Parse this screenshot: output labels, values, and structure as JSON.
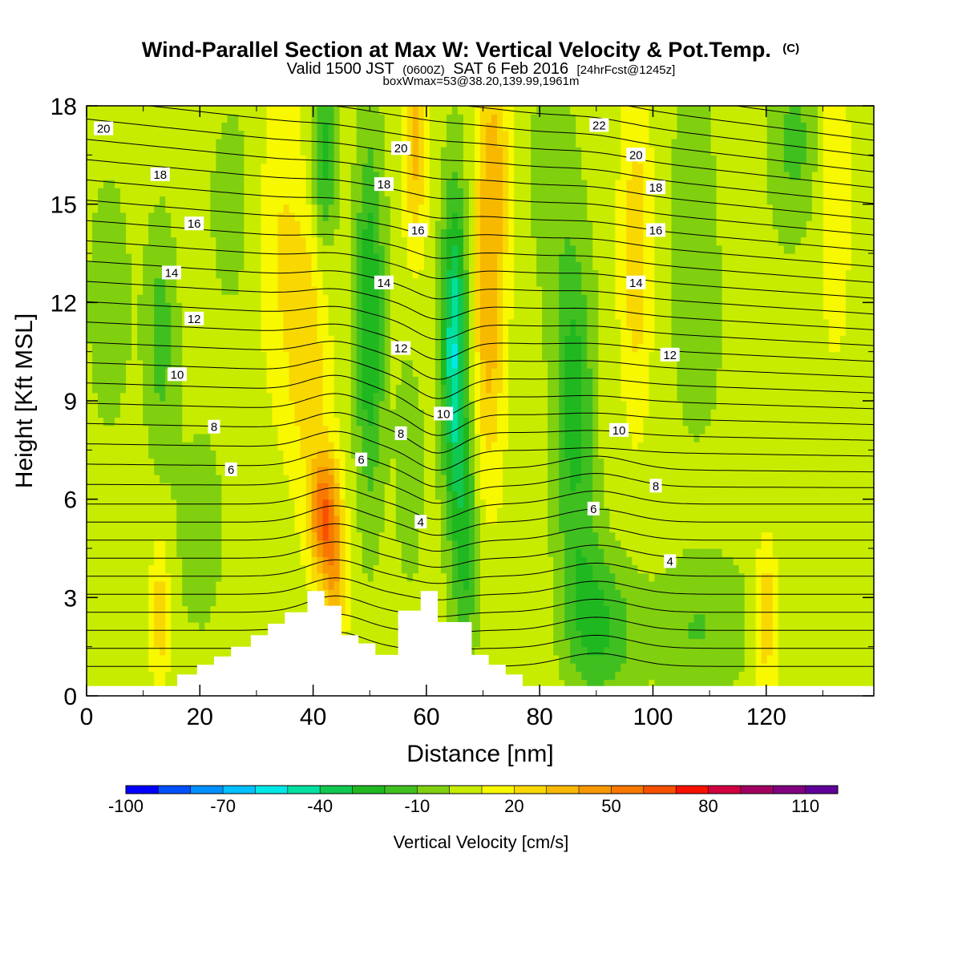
{
  "header": {
    "title": "Wind-Parallel Section at Max W: Vertical Velocity & Pot.Temp.",
    "title_mark": "(C)",
    "valid_prefix": "Valid 1500 JST",
    "valid_utc": "(0600Z)",
    "valid_date": "SAT 6 Feb 2016",
    "valid_fcst": "[24hrFcst@1245z]",
    "box_info": "boxWmax=53@38.20,139.99,1961m"
  },
  "chart_data": {
    "type": "heatmap",
    "title": "Wind-Parallel Section at Max W: Vertical Velocity & Pot.Temp.",
    "xlabel": "Distance [nm]",
    "ylabel": "Height [Kft MSL]",
    "xlim": [
      0,
      139
    ],
    "ylim": [
      0,
      18
    ],
    "x_ticks": [
      "0",
      "20",
      "40",
      "60",
      "80",
      "100",
      "120"
    ],
    "y_ticks": [
      "0",
      "3",
      "6",
      "9",
      "12",
      "15",
      "18"
    ],
    "grid": false,
    "colorbar": {
      "title": "Vertical Velocity [cm/s]",
      "placement": "bottom",
      "levels": [
        -100,
        -90,
        -80,
        -70,
        -60,
        -50,
        -40,
        -30,
        -20,
        -10,
        0,
        10,
        20,
        30,
        40,
        50,
        60,
        70,
        80,
        90,
        100,
        110,
        120
      ],
      "tick_labels": [
        "-100",
        "-70",
        "-40",
        "-10",
        "20",
        "50",
        "80",
        "110"
      ],
      "colors": [
        "#0000ff",
        "#0050ff",
        "#0090ff",
        "#00c0ff",
        "#00e8e8",
        "#00e0a0",
        "#10c850",
        "#20b820",
        "#40c020",
        "#80d010",
        "#c8ec00",
        "#f8f800",
        "#f8d800",
        "#f8b800",
        "#f89800",
        "#f87800",
        "#f85000",
        "#f81000",
        "#d00040",
        "#a00060",
        "#800080",
        "#600098"
      ]
    },
    "vertical_velocity_features": [
      {
        "x": 4,
        "y": 12.0,
        "w": -15,
        "sx": 2.5,
        "sy": 2.5
      },
      {
        "x": 13,
        "y": 11.0,
        "w": -20,
        "sx": 2.0,
        "sy": 2.5
      },
      {
        "x": 13,
        "y": 2.5,
        "w": 22,
        "sx": 1.2,
        "sy": 1.6
      },
      {
        "x": 34,
        "y": 14.0,
        "w": 15,
        "sx": 3.0,
        "sy": 3.5
      },
      {
        "x": 39,
        "y": 10.5,
        "w": 22,
        "sx": 2.5,
        "sy": 3.0
      },
      {
        "x": 42,
        "y": 5.5,
        "w": 52,
        "sx": 1.8,
        "sy": 1.4
      },
      {
        "x": 44,
        "y": 3.5,
        "w": 25,
        "sx": 1.5,
        "sy": 1.5
      },
      {
        "x": 42,
        "y": 16.5,
        "w": -30,
        "sx": 1.6,
        "sy": 2.0
      },
      {
        "x": 50,
        "y": 11.5,
        "w": -35,
        "sx": 1.8,
        "sy": 4.0
      },
      {
        "x": 58,
        "y": 17.0,
        "w": 28,
        "sx": 1.5,
        "sy": 2.5
      },
      {
        "x": 57,
        "y": 7.0,
        "w": -10,
        "sx": 2.0,
        "sy": 3.0
      },
      {
        "x": 65,
        "y": 10.5,
        "w": -55,
        "sx": 1.6,
        "sy": 3.5
      },
      {
        "x": 67,
        "y": 4.5,
        "w": -25,
        "sx": 1.5,
        "sy": 2.5
      },
      {
        "x": 71,
        "y": 11.5,
        "w": 30,
        "sx": 2.0,
        "sy": 3.5
      },
      {
        "x": 72,
        "y": 16.5,
        "w": 22,
        "sx": 2.0,
        "sy": 2.5
      },
      {
        "x": 86,
        "y": 9.0,
        "w": -30,
        "sx": 2.5,
        "sy": 3.5
      },
      {
        "x": 88,
        "y": 3.0,
        "w": -15,
        "sx": 3.0,
        "sy": 2.0
      },
      {
        "x": 82,
        "y": 16.0,
        "w": -10,
        "sx": 3.0,
        "sy": 3.0
      },
      {
        "x": 97,
        "y": 13.5,
        "w": 22,
        "sx": 2.0,
        "sy": 3.5
      },
      {
        "x": 92,
        "y": 2.0,
        "w": -20,
        "sx": 4.0,
        "sy": 1.5
      },
      {
        "x": 108,
        "y": 2.0,
        "w": -15,
        "sx": 6.0,
        "sy": 1.5
      },
      {
        "x": 107,
        "y": 14.0,
        "w": -12,
        "sx": 3.0,
        "sy": 4.0
      },
      {
        "x": 120,
        "y": 2.5,
        "w": 25,
        "sx": 1.4,
        "sy": 1.8
      },
      {
        "x": 125,
        "y": 17.0,
        "w": -18,
        "sx": 3.0,
        "sy": 1.8
      },
      {
        "x": 132,
        "y": 15.0,
        "w": 15,
        "sx": 2.0,
        "sy": 3.5
      },
      {
        "x": 20,
        "y": 5.0,
        "w": -8,
        "sx": 4.0,
        "sy": 3.0
      },
      {
        "x": 26,
        "y": 15.0,
        "w": -8,
        "sx": 4.0,
        "sy": 3.0
      },
      {
        "x": 120,
        "y": 9.0,
        "w": -5,
        "sx": 8.0,
        "sy": 4.0
      }
    ],
    "terrain_profile": {
      "x": [
        0,
        16,
        16,
        19.5,
        19.5,
        22.5,
        22.5,
        25.5,
        25.5,
        29,
        29,
        32,
        32,
        35,
        35,
        39,
        39,
        42,
        42,
        45,
        45,
        48,
        48,
        51,
        51,
        55,
        55,
        59,
        59,
        62,
        62,
        68,
        68,
        71,
        71,
        74,
        74,
        77,
        77,
        84,
        84,
        139
      ],
      "y": [
        0.3,
        0.3,
        0.65,
        0.65,
        0.95,
        0.95,
        1.2,
        1.2,
        1.5,
        1.5,
        1.85,
        1.85,
        2.2,
        2.2,
        2.55,
        2.55,
        3.2,
        3.2,
        2.75,
        2.75,
        1.85,
        1.85,
        1.6,
        1.6,
        1.25,
        1.25,
        2.6,
        2.6,
        3.2,
        3.2,
        2.25,
        2.25,
        1.25,
        1.25,
        0.95,
        0.95,
        0.65,
        0.65,
        0.3,
        0.3,
        0.3,
        0.3
      ]
    },
    "theta_contour_labels": [
      {
        "text": "20",
        "x": 3,
        "y": 17.3
      },
      {
        "text": "18",
        "x": 13,
        "y": 15.9
      },
      {
        "text": "16",
        "x": 19,
        "y": 14.4
      },
      {
        "text": "14",
        "x": 15,
        "y": 12.9
      },
      {
        "text": "12",
        "x": 19,
        "y": 11.5
      },
      {
        "text": "10",
        "x": 16,
        "y": 9.8
      },
      {
        "text": "8",
        "x": 22.5,
        "y": 8.2
      },
      {
        "text": "6",
        "x": 25.5,
        "y": 6.9
      },
      {
        "text": "20",
        "x": 55.5,
        "y": 16.7
      },
      {
        "text": "18",
        "x": 52.5,
        "y": 15.6
      },
      {
        "text": "16",
        "x": 58.5,
        "y": 14.2
      },
      {
        "text": "14",
        "x": 52.5,
        "y": 12.6
      },
      {
        "text": "12",
        "x": 55.5,
        "y": 10.6
      },
      {
        "text": "10",
        "x": 63,
        "y": 8.6
      },
      {
        "text": "8",
        "x": 55.5,
        "y": 8.0
      },
      {
        "text": "6",
        "x": 48.5,
        "y": 7.2
      },
      {
        "text": "4",
        "x": 59,
        "y": 5.3
      },
      {
        "text": "22",
        "x": 90.5,
        "y": 17.4
      },
      {
        "text": "20",
        "x": 97,
        "y": 16.5
      },
      {
        "text": "18",
        "x": 100.5,
        "y": 15.5
      },
      {
        "text": "16",
        "x": 100.5,
        "y": 14.2
      },
      {
        "text": "14",
        "x": 97,
        "y": 12.6
      },
      {
        "text": "12",
        "x": 103,
        "y": 10.4
      },
      {
        "text": "10",
        "x": 94,
        "y": 8.1
      },
      {
        "text": "8",
        "x": 100.5,
        "y": 6.4
      },
      {
        "text": "6",
        "x": 89.5,
        "y": 5.7
      },
      {
        "text": "4",
        "x": 103,
        "y": 4.1
      }
    ]
  }
}
